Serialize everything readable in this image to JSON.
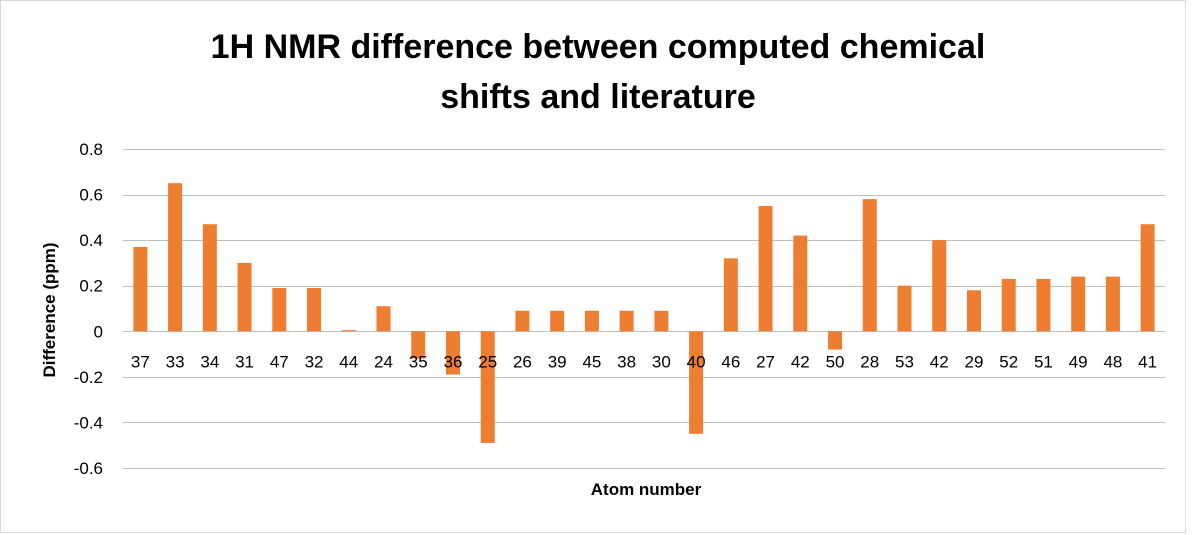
{
  "chart_data": {
    "type": "bar",
    "title_lines": [
      "1H NMR difference between computed chemical",
      "shifts and literature"
    ],
    "xlabel": "Atom number",
    "ylabel": "Difference (ppm)",
    "ylim": [
      -0.6,
      0.8
    ],
    "yticks": [
      0.8,
      0.6,
      0.4,
      0.2,
      0,
      -0.2,
      -0.4,
      -0.6
    ],
    "ytick_labels": [
      "0.8",
      "0.6",
      "0.4",
      "0.2",
      "0",
      "-0.2",
      "-0.4",
      "-0.6"
    ],
    "grid": true,
    "legend": "none",
    "bar_color": "#ed7d31",
    "grid_color": "#bfbfbf",
    "categories": [
      "37",
      "33",
      "34",
      "31",
      "47",
      "32",
      "44",
      "24",
      "35",
      "36",
      "25",
      "26",
      "39",
      "45",
      "38",
      "30",
      "40",
      "46",
      "27",
      "42",
      "50",
      "28",
      "53",
      "42",
      "29",
      "52",
      "51",
      "49",
      "48",
      "41"
    ],
    "values": [
      0.37,
      0.65,
      0.47,
      0.3,
      0.19,
      0.19,
      0.005,
      0.11,
      -0.12,
      -0.19,
      -0.49,
      0.09,
      0.09,
      0.09,
      0.09,
      0.09,
      -0.45,
      0.32,
      0.55,
      0.42,
      -0.08,
      0.58,
      0.2,
      0.4,
      0.18,
      0.23,
      0.23,
      0.24,
      0.24,
      0.47
    ]
  }
}
